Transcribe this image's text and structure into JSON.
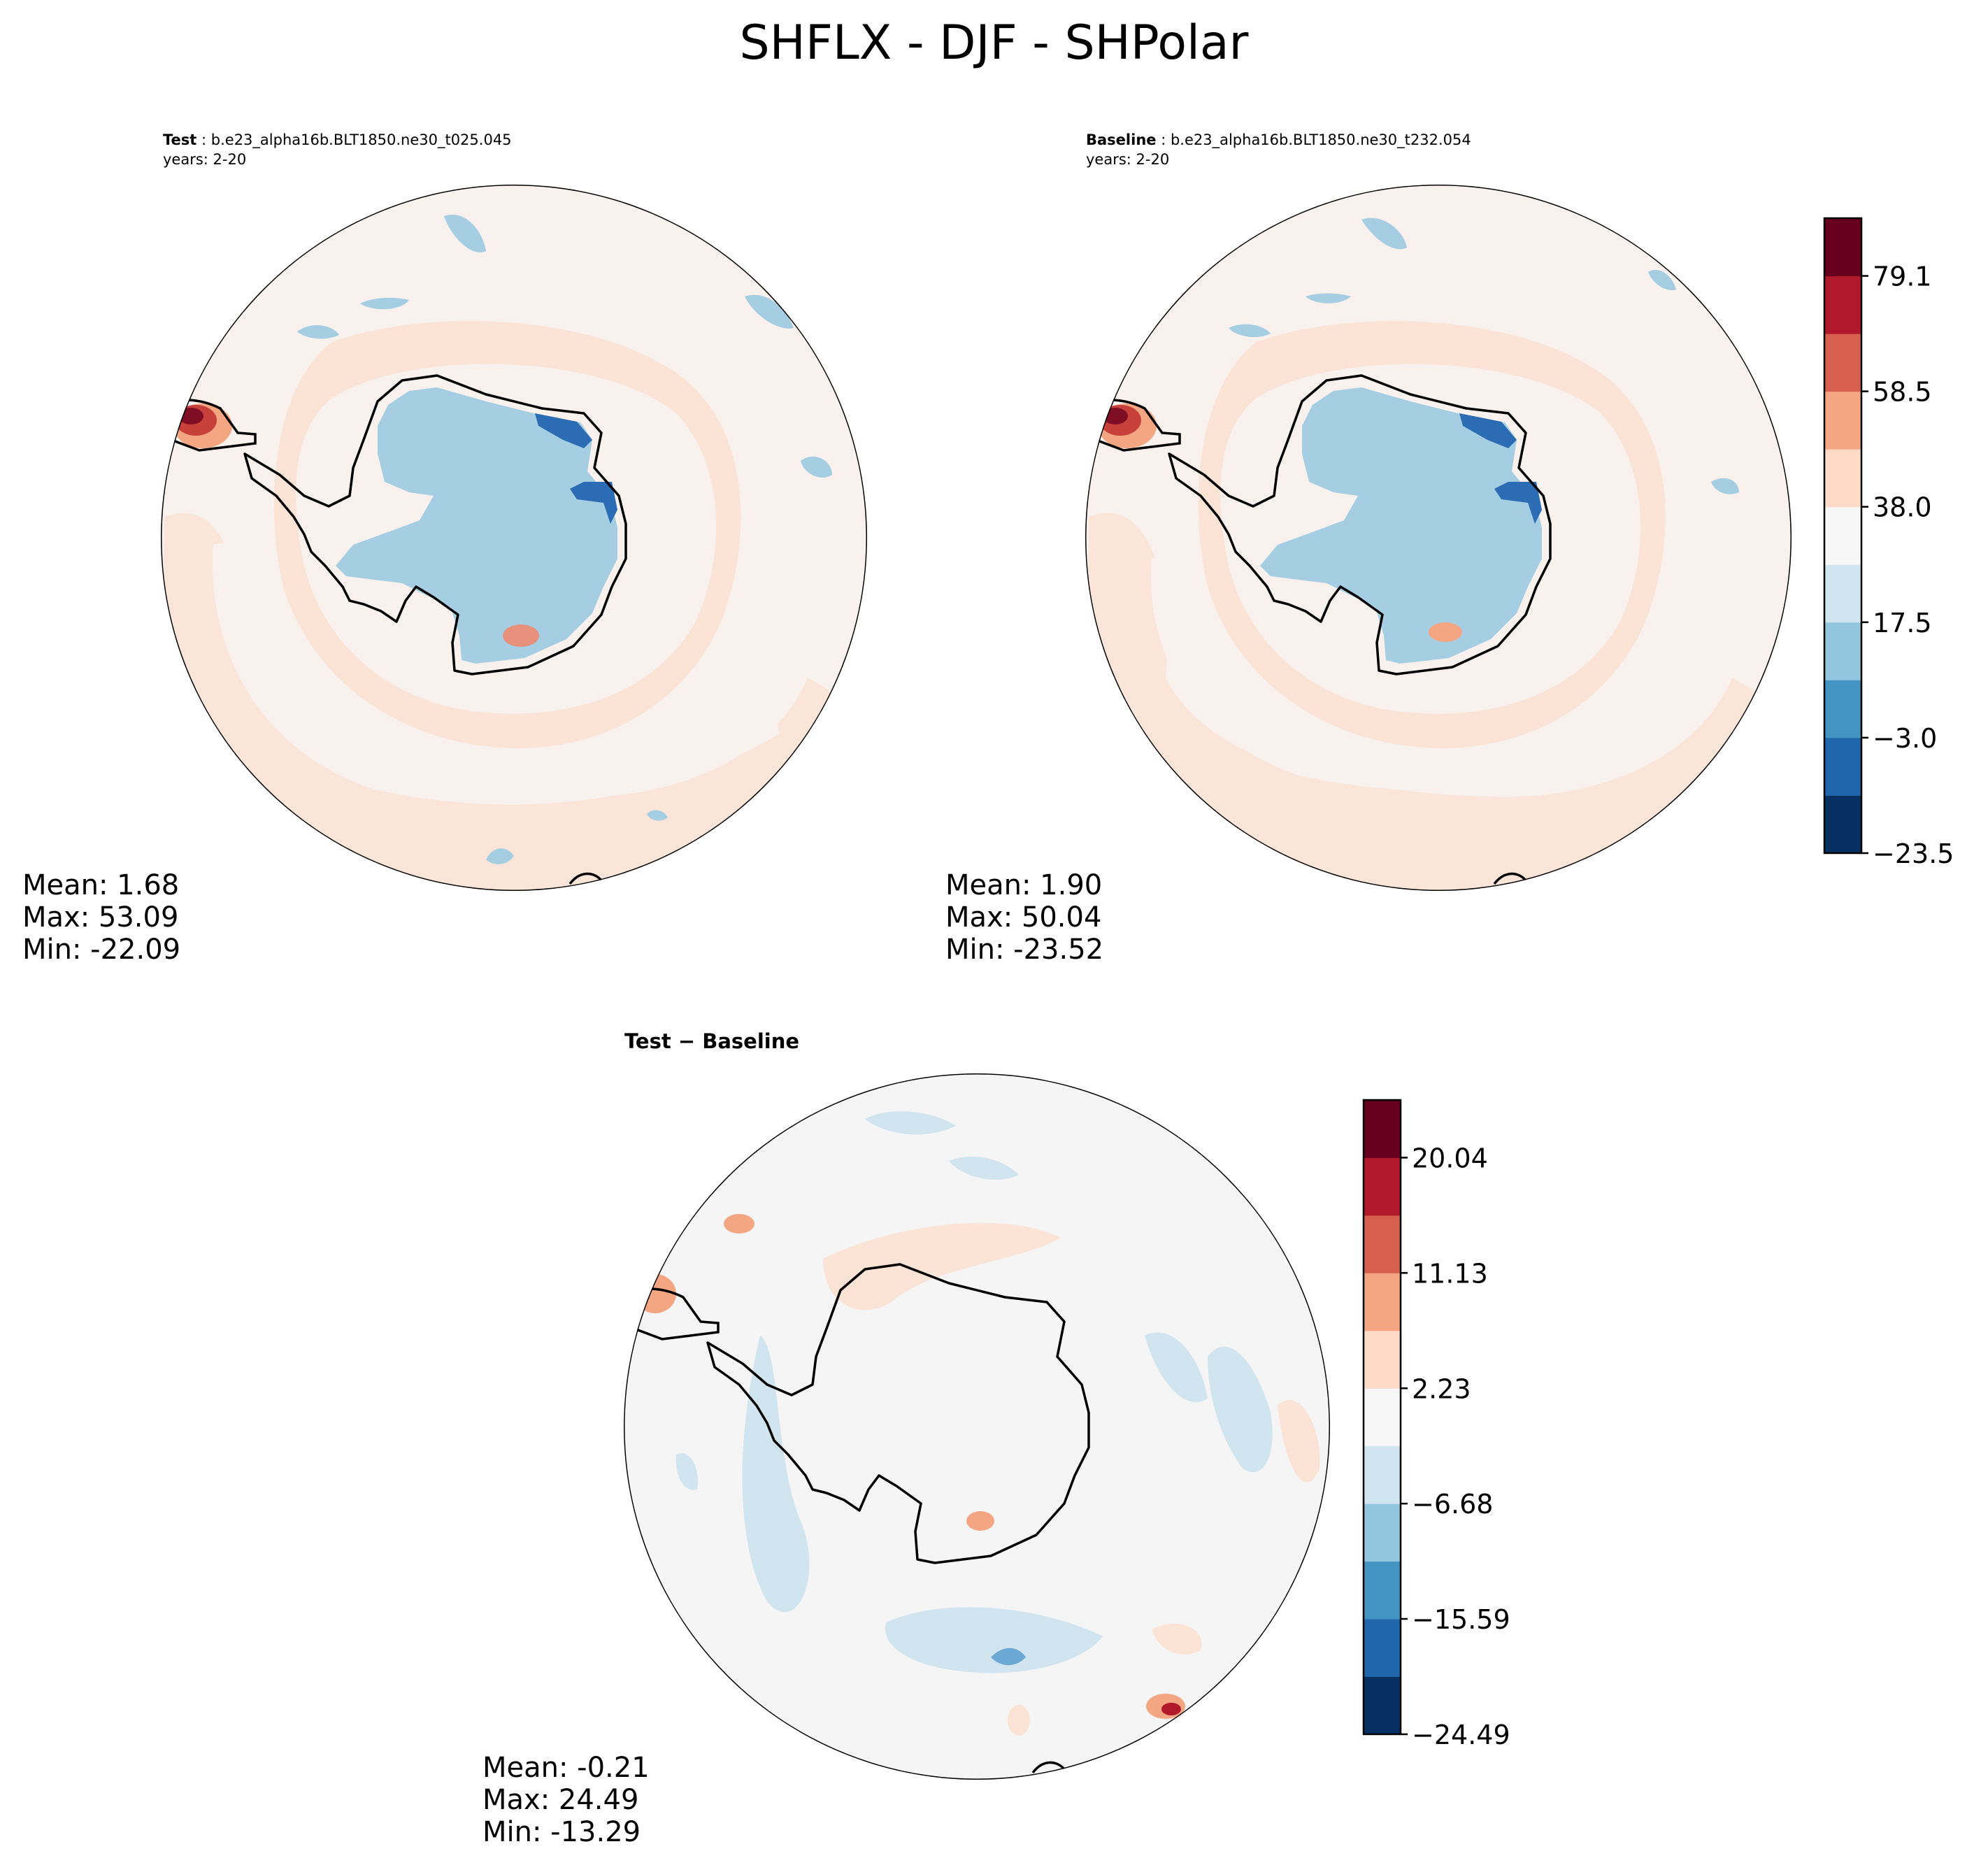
{
  "figure": {
    "title": "SHFLX - DJF - SHPolar"
  },
  "panels": [
    {
      "label": "Test",
      "case": "b.e23_alpha16b.BLT1850.ne30_t025.045",
      "years": "years: 2-20",
      "stats": {
        "mean": "Mean:  1.68",
        "max": "Max: 53.09",
        "min": "Min: -22.09"
      }
    },
    {
      "label": "Baseline",
      "case": "b.e23_alpha16b.BLT1850.ne30_t232.054",
      "years": "years: 2-20",
      "stats": {
        "mean": "Mean:  1.90",
        "max": "Max: 50.04",
        "min": "Min: -23.52"
      }
    },
    {
      "title": "Test − Baseline",
      "stats": {
        "mean": "Mean: -0.21",
        "max": "Max: 24.49",
        "min": "Min: -13.29"
      }
    }
  ],
  "colorbars": {
    "main": {
      "ticks": [
        "79.1",
        "58.5",
        "38.0",
        "17.5",
        "−3.0",
        "−23.5"
      ],
      "colors": [
        "#053061",
        "#2166ac",
        "#4393c3",
        "#92c5de",
        "#d1e5f0",
        "#f7f7f7",
        "#fddbc7",
        "#f4a582",
        "#d6604d",
        "#b2182b",
        "#67001f"
      ]
    },
    "diff": {
      "ticks": [
        "20.04",
        "11.13",
        "2.23",
        "−6.68",
        "−15.59",
        "−24.49"
      ],
      "colors": [
        "#053061",
        "#2166ac",
        "#4393c3",
        "#92c5de",
        "#d1e5f0",
        "#f7f7f7",
        "#fddbc7",
        "#f4a582",
        "#d6604d",
        "#b2182b",
        "#67001f"
      ]
    }
  },
  "chart_data": [
    {
      "type": "heatmap",
      "title": "Test",
      "subtitle": "b.e23_alpha16b.BLT1850.ne30_t025.045",
      "projection": "South Polar Stereographic",
      "variable": "SHFLX",
      "season": "DJF",
      "mean": 1.68,
      "max": 53.09,
      "min": -22.09,
      "levels": [
        -23.5,
        -3.0,
        17.5,
        38.0,
        58.5,
        79.1
      ]
    },
    {
      "type": "heatmap",
      "title": "Baseline",
      "subtitle": "b.e23_alpha16b.BLT1850.ne30_t232.054",
      "projection": "South Polar Stereographic",
      "variable": "SHFLX",
      "season": "DJF",
      "mean": 1.9,
      "max": 50.04,
      "min": -23.52,
      "levels": [
        -23.5,
        -3.0,
        17.5,
        38.0,
        58.5,
        79.1
      ]
    },
    {
      "type": "heatmap",
      "title": "Test − Baseline",
      "projection": "South Polar Stereographic",
      "variable": "SHFLX",
      "season": "DJF",
      "mean": -0.21,
      "max": 24.49,
      "min": -13.29,
      "levels": [
        -24.49,
        -15.59,
        -6.68,
        2.23,
        11.13,
        20.04
      ]
    }
  ]
}
